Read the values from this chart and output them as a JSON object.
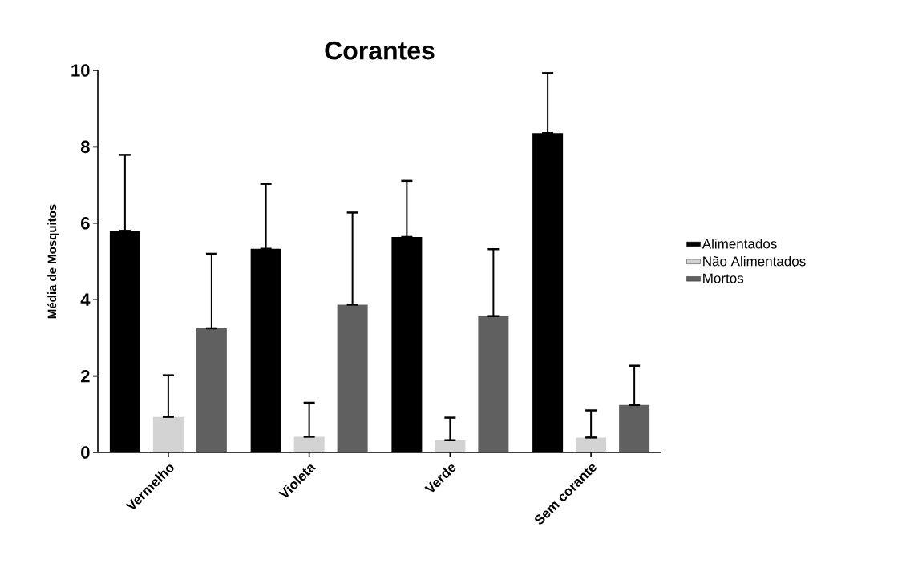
{
  "chart_data": {
    "type": "bar",
    "title": "Corantes",
    "ylabel": "Média de Mosquitos",
    "categories": [
      "Vermelho",
      "Violeta",
      "Verde",
      "Sem corante"
    ],
    "series": [
      {
        "name": "Alimentados",
        "color": "#000000",
        "values": [
          5.8,
          5.33,
          5.64,
          8.36
        ],
        "errors": [
          [
            5.8,
            7.79
          ],
          [
            5.33,
            7.03
          ],
          [
            5.64,
            7.11
          ],
          [
            8.36,
            9.93
          ]
        ]
      },
      {
        "name": "Não Alimentados",
        "color": "#d3d3d3",
        "values": [
          0.93,
          0.41,
          0.32,
          0.39
        ],
        "errors": [
          [
            0.93,
            2.02
          ],
          [
            0.41,
            1.3
          ],
          [
            0.32,
            0.91
          ],
          [
            0.39,
            1.1
          ]
        ]
      },
      {
        "name": "Mortos",
        "color": "#606060",
        "values": [
          3.25,
          3.87,
          3.57,
          1.24
        ],
        "errors": [
          [
            3.25,
            5.2
          ],
          [
            3.87,
            6.28
          ],
          [
            3.57,
            5.32
          ],
          [
            1.24,
            2.27
          ]
        ]
      }
    ],
    "ylim": [
      0,
      10
    ],
    "yticks": [
      0,
      2,
      4,
      6,
      8,
      10
    ],
    "legend": "right"
  }
}
